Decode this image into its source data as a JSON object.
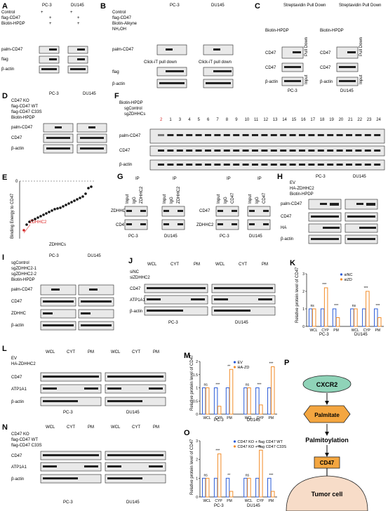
{
  "panels": [
    "A",
    "B",
    "C",
    "D",
    "E",
    "F",
    "G",
    "H",
    "I",
    "J",
    "K",
    "L",
    "M",
    "N",
    "O",
    "P"
  ],
  "cells": {
    "pc3": "PC-3",
    "du145": "DU145"
  },
  "labels": {
    "control": "Control",
    "flag_cd47": "flag-CD47",
    "biotin_hpdp": "Biotin-HPDP",
    "biotin_alkyne": "Biotin-Alkyne",
    "nh2oh": "NH₂OH",
    "palm_cd47": "palm-CD47",
    "flag": "flag",
    "beta_actin": "β-actin",
    "click_pull_down": "Click-iT pull down",
    "streptavidin_pull_down": "Streptavidin Pull Down",
    "cd47": "CD47",
    "pull_down": "Pull Down",
    "input": "Input",
    "cd47_ko": "CD47 KO",
    "flag_cd47_wt": "flag-CD47 WT",
    "flag_cd47_c33s": "flag-CD47 C33S",
    "zdhhcs": "ZDHHCs",
    "binding_energy": "Binding Energy to CD47",
    "zdhhc2": "ZDHHC2",
    "sgcontrol": "sgControl",
    "sgzdhhcs": "sgZDHHCs",
    "ip": "IP",
    "igg": "IgG",
    "ev": "EV",
    "ha_zdhhc2": "HA-ZDHHC2",
    "ha": "HA",
    "sgzdhhc2_1": "sgZDHHC2-1",
    "sgzdhhc2_2": "sgZDHHC2-2",
    "zdhhc": "ZDHHC",
    "wcl": "WCL",
    "cyt": "CYT",
    "pm": "PM",
    "sinc": "siNC",
    "sizdhhc2": "siZDHHC2",
    "atp1a1": "ATP1A1",
    "sizd": "siZD",
    "ha_zd": "HA-ZD",
    "rel_protein": "Relative protein level of CD47",
    "ns": "ns",
    "s2": "**",
    "s3": "***",
    "legend_o1": "CD47 KO + flag CD47 WT",
    "legend_o2": "CD47 KO + flag CD47 C33S",
    "plus": "+",
    "minus": "-"
  },
  "f_lanes": [
    "2",
    "1",
    "3",
    "4",
    "5",
    "6",
    "7",
    "8",
    "9",
    "10",
    "11",
    "12",
    "13",
    "14",
    "15",
    "16",
    "17",
    "18",
    "19",
    "20",
    "21",
    "22",
    "23",
    "24"
  ],
  "pathway": {
    "node1": "CXCR2",
    "node2": "Palmitate",
    "node3": "Palmitoylation",
    "node4": "CD47",
    "node5": "Tumor cell"
  },
  "colors": {
    "red": "#d22222",
    "blue": "#2a5bd7",
    "orange": "#f28c28",
    "green_node": "#8fd3b8",
    "orange_node": "#f4a640",
    "cell": "#f7dcc8"
  },
  "chart_data": [
    {
      "type": "scatter",
      "panel": "E",
      "title": "",
      "xlabel": "ZDHHCs",
      "ylabel": "Binding Energy to CD47",
      "ylim": [
        -40,
        0
      ],
      "annotation": "ZDHHC2",
      "values": [
        -35,
        -31,
        -29,
        -28,
        -27,
        -26,
        -25,
        -24,
        -23,
        -22,
        -21,
        -20,
        -19.5,
        -19,
        -18,
        -17,
        -16,
        -15,
        -14,
        -13,
        -12,
        -11,
        -9,
        -5,
        -4
      ]
    },
    {
      "type": "bar",
      "panel": "K",
      "categories": [
        "WCL",
        "CYP",
        "PM",
        "WCL",
        "CYP",
        "PM"
      ],
      "groups": [
        "PC-3",
        "DU145"
      ],
      "series": [
        {
          "name": "siNC",
          "values": [
            1,
            1,
            1,
            1,
            1,
            1
          ]
        },
        {
          "name": "siZD",
          "values": [
            1,
            2.2,
            0.5,
            1,
            2.0,
            0.5
          ]
        }
      ],
      "ylabel": "Relative protein level of CD47",
      "ylim": [
        0,
        3
      ],
      "significance": [
        "ns",
        "***",
        "***",
        "ns",
        "***",
        "***"
      ]
    },
    {
      "type": "bar",
      "panel": "M",
      "categories": [
        "WCL",
        "CYP",
        "PM",
        "WCL",
        "CYP",
        "PM"
      ],
      "groups": [
        "PC-3",
        "DU145"
      ],
      "series": [
        {
          "name": "EV",
          "values": [
            1,
            1,
            1,
            1,
            1,
            1
          ]
        },
        {
          "name": "HA-ZD",
          "values": [
            1,
            0.3,
            1.7,
            1,
            0.35,
            1.8
          ]
        }
      ],
      "ylabel": "Relative protein level of CD47",
      "ylim": [
        0,
        2
      ],
      "significance": [
        "ns",
        "***",
        "**",
        "ns",
        "***",
        "***"
      ]
    },
    {
      "type": "bar",
      "panel": "O",
      "categories": [
        "WCL",
        "CYP",
        "PM",
        "WCL",
        "CYP",
        "PM"
      ],
      "groups": [
        "PC-3",
        "DU145"
      ],
      "series": [
        {
          "name": "CD47 KO + flag CD47 WT",
          "values": [
            1,
            1,
            1,
            1,
            1,
            1
          ]
        },
        {
          "name": "CD47 KO + flag CD47 C33S",
          "values": [
            1,
            2.3,
            0.3,
            1,
            2.5,
            0.3
          ]
        }
      ],
      "ylabel": "Relative protein level of CD47",
      "ylim": [
        0,
        3
      ],
      "significance": [
        "ns",
        "***",
        "**",
        "ns",
        "***",
        "***"
      ]
    }
  ]
}
